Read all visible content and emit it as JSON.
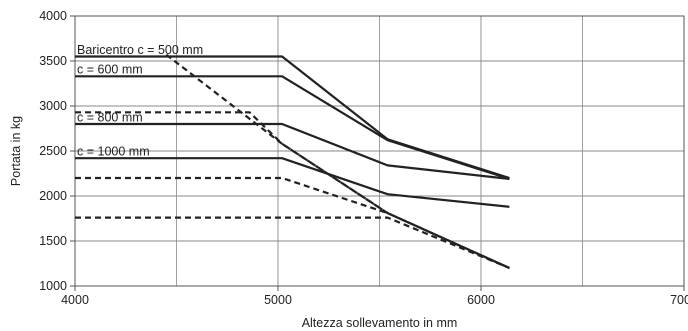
{
  "chart_data": {
    "type": "line",
    "title": "",
    "xlabel": "Altezza sollevamento in mm",
    "ylabel": "Portata in kg",
    "xlim": [
      4000,
      7000
    ],
    "ylim": [
      1000,
      4000
    ],
    "xticks": [
      4000,
      5000,
      6000,
      7000
    ],
    "yticks": [
      1000,
      1500,
      2000,
      2500,
      3000,
      3500,
      4000
    ],
    "grid": true,
    "legend": "none",
    "colors": {
      "line": "#222222",
      "grid": "#888888",
      "background": "#ffffff"
    },
    "series": [
      {
        "name": "Baricentro c = 500 mm",
        "style": "solid",
        "x": [
          4000,
          5020,
          5540,
          6140
        ],
        "y": [
          3550,
          3550,
          2630,
          2200
        ]
      },
      {
        "name": "c = 600 mm",
        "style": "solid",
        "x": [
          4000,
          5020,
          5540,
          6140
        ],
        "y": [
          3330,
          3330,
          2620,
          2190
        ]
      },
      {
        "name": "c = 800 mm",
        "style": "solid",
        "x": [
          4000,
          5020,
          5540,
          6140
        ],
        "y": [
          2800,
          2800,
          2340,
          2190
        ]
      },
      {
        "name": "c = 1000 mm",
        "style": "solid",
        "x": [
          4000,
          5020,
          5540,
          6140
        ],
        "y": [
          2420,
          2420,
          2020,
          1880
        ]
      },
      {
        "style": "dashed",
        "x": [
          4450,
          5020,
          5540,
          6140
        ],
        "y": [
          3570,
          2580,
          1810,
          1200
        ]
      },
      {
        "style": "dashed",
        "x": [
          4000,
          4860,
          5020,
          5540,
          6140
        ],
        "y": [
          2930,
          2930,
          2580,
          1810,
          1200
        ]
      },
      {
        "style": "dashed",
        "x": [
          4000,
          5020,
          5540,
          6140
        ],
        "y": [
          2200,
          2200,
          1810,
          1200
        ]
      },
      {
        "style": "dashed",
        "x": [
          4000,
          5540,
          6140
        ],
        "y": [
          1760,
          1760,
          1200
        ]
      }
    ],
    "annotations": [
      {
        "text": "Baricentro c = 500 mm",
        "x": 4010,
        "y": 3580
      },
      {
        "text": "c = 600 mm",
        "x": 4010,
        "y": 3360
      },
      {
        "text": "c = 800 mm",
        "x": 4010,
        "y": 2830
      },
      {
        "text": "c = 1000 mm",
        "x": 4010,
        "y": 2450
      }
    ]
  }
}
